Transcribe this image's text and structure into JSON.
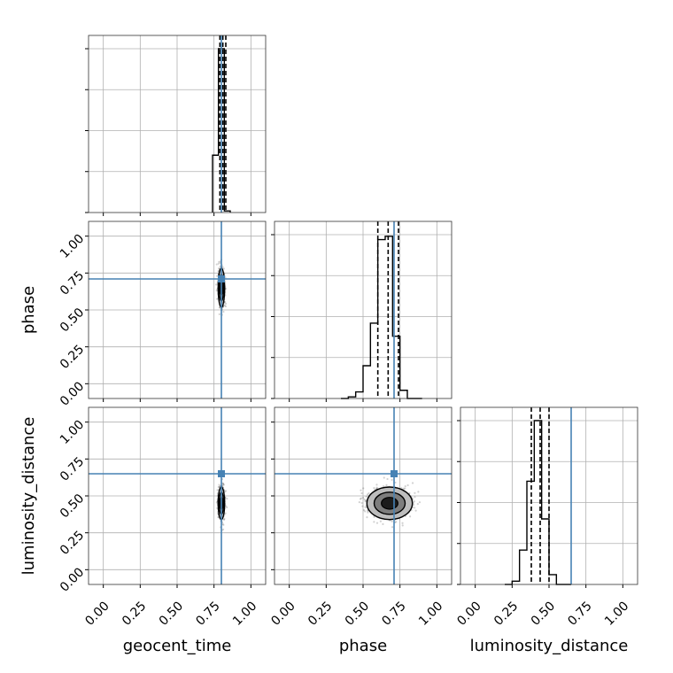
{
  "chart_data": {
    "type": "corner",
    "parameters": [
      "geocent_time",
      "phase",
      "luminosity_distance"
    ],
    "axis_labels": [
      "geocent_time",
      "phase",
      "luminosity_distance"
    ],
    "axis_range": [
      -0.1,
      1.1
    ],
    "ticks": [
      0.0,
      0.25,
      0.5,
      0.75,
      1.0
    ],
    "tick_labels": [
      "0.00",
      "0.25",
      "0.50",
      "0.75",
      "1.00"
    ],
    "grid": true,
    "truths": {
      "geocent_time": 0.8,
      "phase": 0.71,
      "luminosity_distance": 0.65
    },
    "truth_color": "#4682b4",
    "line_color": "#000000",
    "quantiles": {
      "geocent_time": [
        0.79,
        0.81,
        0.83
      ],
      "phase": [
        0.6,
        0.67,
        0.74
      ],
      "luminosity_distance": [
        0.38,
        0.44,
        0.5
      ]
    },
    "histograms": {
      "geocent_time": {
        "bin_edges": [
          0.74,
          0.78,
          0.82,
          0.86
        ],
        "counts": [
          0.35,
          1.0,
          0.01
        ]
      },
      "phase": {
        "bin_edges": [
          0.35,
          0.4,
          0.45,
          0.5,
          0.55,
          0.6,
          0.65,
          0.7,
          0.75,
          0.8,
          0.85,
          0.9
        ],
        "counts": [
          0.0,
          0.01,
          0.04,
          0.2,
          0.46,
          0.97,
          0.99,
          0.38,
          0.05,
          0.0,
          0.0
        ]
      },
      "luminosity_distance": {
        "bin_edges": [
          0.2,
          0.25,
          0.3,
          0.35,
          0.4,
          0.45,
          0.5,
          0.55,
          0.6,
          0.65
        ],
        "counts": [
          0.0,
          0.02,
          0.21,
          0.63,
          1.0,
          0.4,
          0.06,
          0.0,
          0.0
        ]
      }
    },
    "scatter_2d": [
      {
        "x": "geocent_time",
        "y": "phase",
        "center": [
          0.8,
          0.65
        ],
        "sd": [
          0.01,
          0.06
        ]
      },
      {
        "x": "geocent_time",
        "y": "luminosity_distance",
        "center": [
          0.8,
          0.45
        ],
        "sd": [
          0.01,
          0.05
        ]
      },
      {
        "x": "phase",
        "y": "luminosity_distance",
        "center": [
          0.68,
          0.45
        ],
        "sd": [
          0.07,
          0.05
        ]
      }
    ]
  }
}
